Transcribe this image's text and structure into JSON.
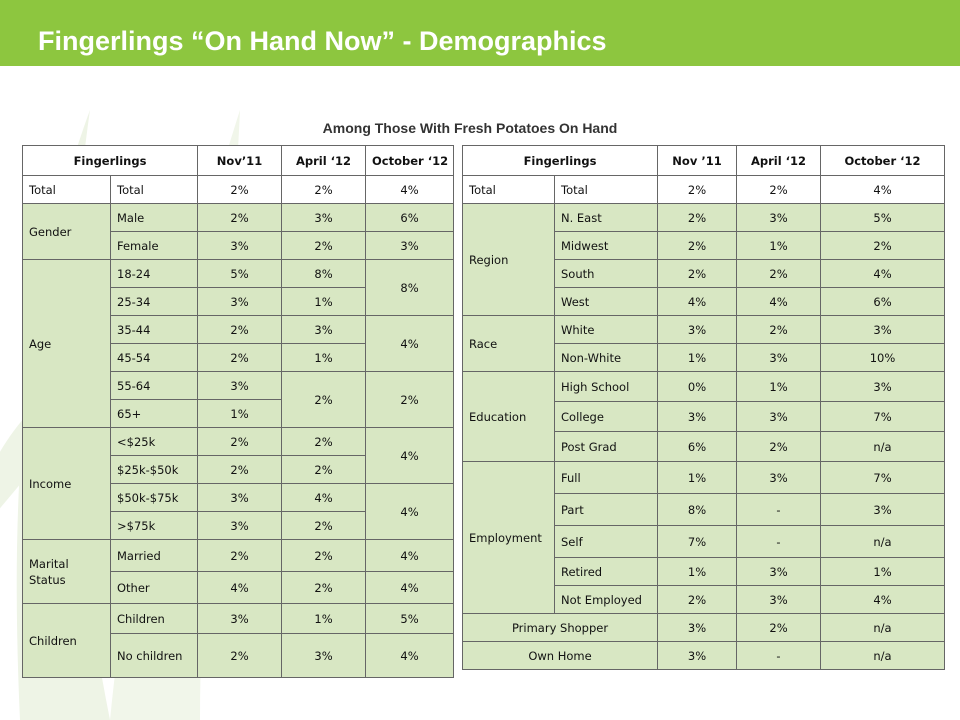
{
  "header": {
    "title": "Fingerlings “On Hand Now” -  Demographics"
  },
  "subtitle": "Among Those With Fresh Potatoes On Hand",
  "left_table": {
    "headers": [
      "Fingerlings",
      "Nov’11",
      "April ‘12",
      "October ‘12"
    ],
    "total": {
      "group": "Total",
      "label": "Total",
      "nov": "2%",
      "apr": "2%",
      "oct": "4%"
    },
    "gender": {
      "group": "Gender",
      "male": {
        "label": "Male",
        "nov": "2%",
        "apr": "3%",
        "oct": "6%"
      },
      "female": {
        "label": "Female",
        "nov": "3%",
        "apr": "2%",
        "oct": "3%"
      }
    },
    "age": {
      "group": "Age",
      "r1824": {
        "label": "18-24",
        "nov": "5%",
        "apr": "8%"
      },
      "r2534": {
        "label": "25-34",
        "nov": "3%",
        "apr": "1%"
      },
      "oct_1834": "8%",
      "r3544": {
        "label": "35-44",
        "nov": "2%",
        "apr": "3%"
      },
      "r4554": {
        "label": "45-54",
        "nov": "2%",
        "apr": "1%"
      },
      "oct_3554": "4%",
      "r5564": {
        "label": "55-64",
        "nov": "3%"
      },
      "r65": {
        "label": "65+",
        "nov": "1%"
      },
      "apr_55plus": "2%",
      "oct_55plus": "2%"
    },
    "income": {
      "group": "Income",
      "r1": {
        "label": "<$25k",
        "nov": "2%",
        "apr": "2%"
      },
      "r2": {
        "label": "$25k-$50k",
        "nov": "2%",
        "apr": "2%"
      },
      "oct_under50": "4%",
      "r3": {
        "label": "$50k-$75k",
        "nov": "3%",
        "apr": "4%"
      },
      "r4": {
        "label": ">$75k",
        "nov": "3%",
        "apr": "2%"
      },
      "oct_over50": "4%"
    },
    "marital": {
      "group": "Marital Status",
      "married": {
        "label": "Married",
        "nov": "2%",
        "apr": "2%",
        "oct": "4%"
      },
      "other": {
        "label": "Other",
        "nov": "4%",
        "apr": "2%",
        "oct": "4%"
      }
    },
    "children": {
      "group": "Children",
      "children": {
        "label": "Children",
        "nov": "3%",
        "apr": "1%",
        "oct": "5%"
      },
      "nochildren": {
        "label": "No children",
        "nov": "2%",
        "apr": "3%",
        "oct": "4%"
      }
    }
  },
  "right_table": {
    "headers": [
      "Fingerlings",
      "Nov ’11",
      "April ‘12",
      "October ‘12"
    ],
    "total": {
      "group": "Total",
      "label": "Total",
      "nov": "2%",
      "apr": "2%",
      "oct": "4%"
    },
    "region": {
      "group": "Region",
      "neast": {
        "label": "N. East",
        "nov": "2%",
        "apr": "3%",
        "oct": "5%"
      },
      "midwest": {
        "label": "Midwest",
        "nov": "2%",
        "apr": "1%",
        "oct": "2%"
      },
      "south": {
        "label": "South",
        "nov": "2%",
        "apr": "2%",
        "oct": "4%"
      },
      "west": {
        "label": "West",
        "nov": "4%",
        "apr": "4%",
        "oct": "6%"
      }
    },
    "race": {
      "group": "Race",
      "white": {
        "label": "White",
        "nov": "3%",
        "apr": "2%",
        "oct": "3%"
      },
      "nonwhite": {
        "label": "Non-White",
        "nov": "1%",
        "apr": "3%",
        "oct": "10%"
      }
    },
    "education": {
      "group": "Education",
      "hs": {
        "label": "High School",
        "nov": "0%",
        "apr": "1%",
        "oct": "3%"
      },
      "college": {
        "label": "College",
        "nov": "3%",
        "apr": "3%",
        "oct": "7%"
      },
      "postgrad": {
        "label": "Post Grad",
        "nov": "6%",
        "apr": "2%",
        "oct": "n/a"
      }
    },
    "employment": {
      "group": "Employment",
      "full": {
        "label": "Full",
        "nov": "1%",
        "apr": "3%",
        "oct": "7%"
      },
      "part": {
        "label": "Part",
        "nov": "8%",
        "apr": "-",
        "oct": "3%"
      },
      "self": {
        "label": "Self",
        "nov": "7%",
        "apr": "-",
        "oct": "n/a"
      },
      "retired": {
        "label": "Retired",
        "nov": "1%",
        "apr": "3%",
        "oct": "1%"
      },
      "notemployed": {
        "label": "Not Employed",
        "nov": "2%",
        "apr": "3%",
        "oct": "4%"
      }
    },
    "primary_shopper": {
      "label": "Primary Shopper",
      "nov": "3%",
      "apr": "2%",
      "oct": "n/a"
    },
    "own_home": {
      "label": "Own Home",
      "nov": "3%",
      "apr": "-",
      "oct": "n/a"
    }
  }
}
